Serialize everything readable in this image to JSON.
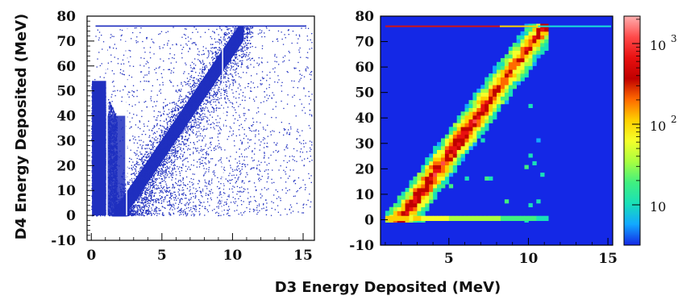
{
  "chart_data": {
    "shared": {
      "xlabel": "D3 Energy Deposited (MeV)",
      "ylabel": "D4 Energy Deposited (MeV)",
      "xlim": [
        0,
        15
      ],
      "ylim": [
        -10,
        80
      ]
    },
    "charts": [
      {
        "type": "scatter",
        "xticks": [
          "0",
          "5",
          "10",
          "15"
        ],
        "yticks": [
          "-10",
          "0",
          "10",
          "20",
          "30",
          "40",
          "50",
          "60",
          "70",
          "80"
        ],
        "ylim": [
          -10,
          80
        ],
        "xlim": [
          -0.3,
          15.8
        ],
        "point_color": "#1f2fbf",
        "saturation_line_y": 76,
        "band": {
          "slope": 8.4,
          "intercept": -16.0,
          "x_range": [
            1.6,
            10.8
          ],
          "width_mev": 9.0
        },
        "vertical_gaps_x": [
          1.1,
          2.5,
          9.3
        ]
      },
      {
        "type": "heatmap",
        "xticks": [
          "5",
          "10",
          "15"
        ],
        "yticks": [
          "-10",
          "0",
          "10",
          "20",
          "30",
          "40",
          "50",
          "60",
          "70",
          "80"
        ],
        "ylim": [
          -10,
          80
        ],
        "xlim": [
          0.7,
          15.3
        ],
        "background_color": "#1428e6",
        "saturation_line_y": 76,
        "band": {
          "slope": 8.4,
          "intercept": -16.0,
          "x_range": [
            1.0,
            10.8
          ]
        },
        "colorbar": {
          "scale": "log",
          "labels": [
            {
              "text": "10",
              "exp": "3"
            },
            {
              "text": "10",
              "exp": "2"
            },
            {
              "text": "10",
              "exp": ""
            }
          ],
          "colors": [
            "#ffb0b0",
            "#ff4a4a",
            "#e81010",
            "#c00000",
            "#ff6a00",
            "#ffd000",
            "#f4ff2a",
            "#a8ff40",
            "#40f080",
            "#19e0b8",
            "#12a8ff",
            "#1428e6"
          ]
        }
      }
    ]
  }
}
